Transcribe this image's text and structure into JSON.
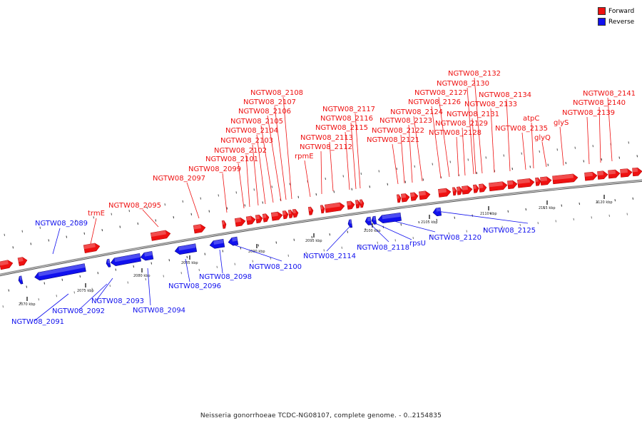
{
  "colors": {
    "forward": "#ee1111",
    "reverse": "#1111ee",
    "backbone": "#8a8a8a"
  },
  "legend": {
    "forward_label": "Forward",
    "reverse_label": "Reverse"
  },
  "caption": "Neisseria gonorrhoeae TCDC-NG08107, complete genome. - 0..2154835",
  "scale_labels": [
    "2070 kbp",
    "2075 kbp",
    "2080 kbp",
    "2085 kbp",
    "2090 kbp",
    "2095 kbp",
    "2100 kbp",
    "2105 kbp",
    "2110 kbp",
    "2115 kbp",
    "2120 kbp"
  ],
  "forward_labels": [
    "trmE",
    "NGTW08_2095",
    "NGTW08_2097",
    "NGTW08_2099",
    "NGTW08_2101",
    "NGTW08_2102",
    "NGTW08_2103",
    "NGTW08_2104",
    "NGTW08_2105",
    "NGTW08_2106",
    "NGTW08_2107",
    "NGTW08_2108",
    "rpmE",
    "NGTW08_2112",
    "NGTW08_2113",
    "NGTW08_2115",
    "NGTW08_2116",
    "NGTW08_2117",
    "NGTW08_2121",
    "NGTW08_2122",
    "NGTW08_2123",
    "NGTW08_2124",
    "NGTW08_2126",
    "NGTW08_2127",
    "NGTW08_2128",
    "NGTW08_2129",
    "NGTW08_2130",
    "NGTW08_2131",
    "NGTW08_2132",
    "NGTW08_2133",
    "NGTW08_2134",
    "NGTW08_2135",
    "atpC",
    "glyQ",
    "glyS",
    "NGTW08_2139",
    "NGTW08_2140",
    "NGTW08_2141"
  ],
  "reverse_labels": [
    "NGTW08_2089",
    "NGTW08_2091",
    "NGTW08_2092",
    "NGTW08_2093",
    "NGTW08_2094",
    "NGTW08_2096",
    "NGTW08_2098",
    "NGTW08_2100",
    "NGTW08_2114",
    "NGTW08_2118",
    "rpsU",
    "NGTW08_2120",
    "NGTW08_2125"
  ]
}
